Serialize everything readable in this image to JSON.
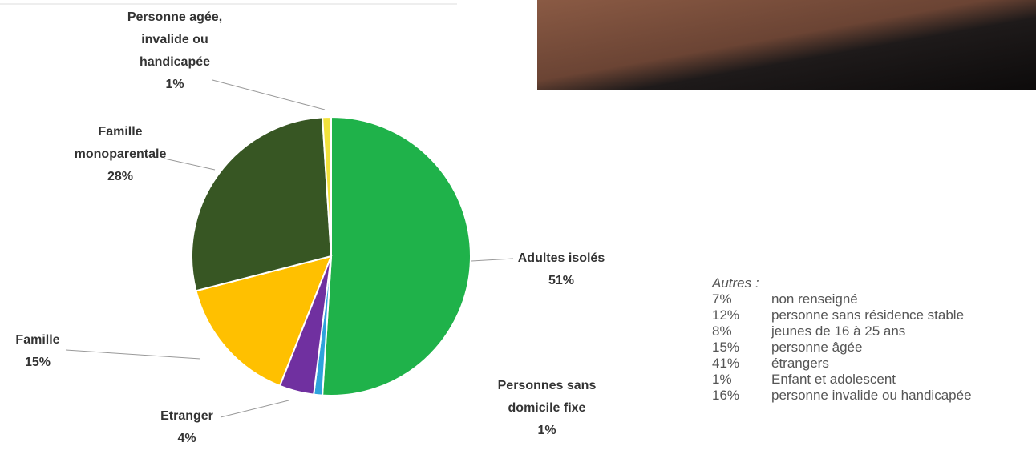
{
  "chart_data": {
    "type": "pie",
    "categories": [
      "Adultes isolés",
      "Personnes sans domicile fixe",
      "Etranger",
      "Famille",
      "Famille monoparentale",
      "Personne agée, invalide ou handicapée"
    ],
    "values": [
      51,
      1,
      4,
      15,
      28,
      1
    ],
    "value_labels": [
      "51%",
      "1%",
      "4%",
      "15%",
      "28%",
      "1%"
    ],
    "colors": [
      "#1fb24a",
      "#2ea3dc",
      "#7030a0",
      "#ffc000",
      "#375623",
      "#f2e23c"
    ]
  },
  "notes": {
    "title": "Autres :",
    "items": [
      {
        "pct": "7%",
        "label": "non renseigné"
      },
      {
        "pct": "12%",
        "label": "personne sans résidence stable"
      },
      {
        "pct": "8%",
        "label": "jeunes de 16 à 25 ans"
      },
      {
        "pct": "15%",
        "label": "personne âgée"
      },
      {
        "pct": "41%",
        "label": "étrangers"
      },
      {
        "pct": "1%",
        "label": "Enfant et adolescent"
      },
      {
        "pct": "16%",
        "label": "personne invalide ou handicapée"
      }
    ]
  }
}
